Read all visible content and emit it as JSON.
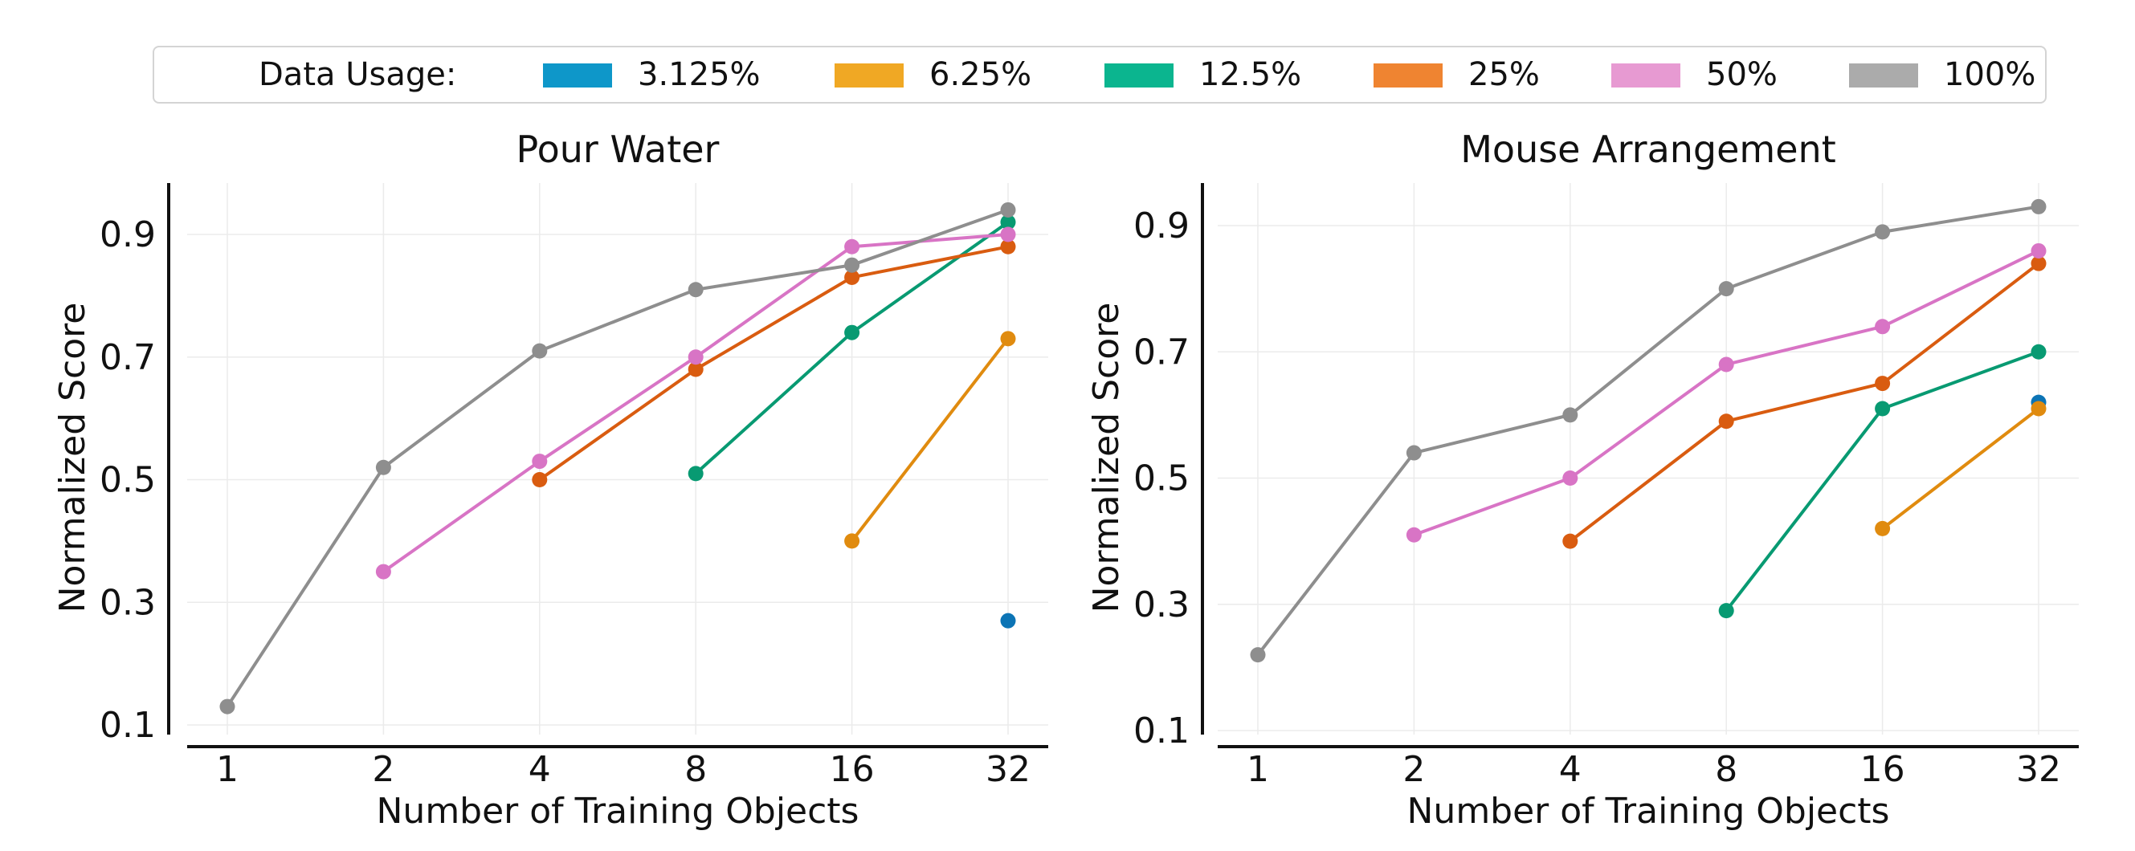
{
  "legend": {
    "title": "Data Usage:",
    "items": [
      {
        "label": "3.125%",
        "color": "#0e97c9"
      },
      {
        "label": "6.25%",
        "color": "#f0a824"
      },
      {
        "label": "12.5%",
        "color": "#0bb58f"
      },
      {
        "label": "25%",
        "color": "#ef8431"
      },
      {
        "label": "50%",
        "color": "#e79ad2"
      },
      {
        "label": "100%",
        "color": "#ababab"
      }
    ]
  },
  "line_colors": [
    "#0c74b5",
    "#e08b0f",
    "#089a72",
    "#d95c10",
    "#d874c5",
    "#8e8e8e"
  ],
  "chart_data": [
    {
      "type": "line",
      "title": "Pour Water",
      "xlabel": "Number of Training Objects",
      "ylabel": "Normalized Score",
      "x": [
        "1",
        "2",
        "4",
        "8",
        "16",
        "32"
      ],
      "yticks": [
        "0.1",
        "0.3",
        "0.5",
        "0.7",
        "0.9"
      ],
      "ylim": [
        0.1,
        0.97
      ],
      "grid": true,
      "series": [
        {
          "name": "3.125%",
          "values": [
            null,
            null,
            null,
            null,
            null,
            0.27
          ]
        },
        {
          "name": "6.25%",
          "values": [
            null,
            null,
            null,
            null,
            0.4,
            0.73
          ]
        },
        {
          "name": "12.5%",
          "values": [
            null,
            null,
            null,
            0.51,
            0.74,
            0.92
          ]
        },
        {
          "name": "25%",
          "values": [
            null,
            null,
            0.5,
            0.68,
            0.83,
            0.88
          ]
        },
        {
          "name": "50%",
          "values": [
            null,
            0.35,
            0.53,
            0.7,
            0.88,
            0.9
          ]
        },
        {
          "name": "100%",
          "values": [
            0.13,
            0.52,
            0.71,
            0.81,
            0.85,
            0.94
          ]
        }
      ]
    },
    {
      "type": "line",
      "title": "Mouse Arrangement",
      "xlabel": "Number of Training Objects",
      "ylabel": "Normalized Score",
      "x": [
        "1",
        "2",
        "4",
        "8",
        "16",
        "32"
      ],
      "yticks": [
        "0.1",
        "0.3",
        "0.5",
        "0.7",
        "0.9"
      ],
      "ylim": [
        0.1,
        0.96
      ],
      "grid": true,
      "series": [
        {
          "name": "3.125%",
          "values": [
            null,
            null,
            null,
            null,
            null,
            0.62
          ]
        },
        {
          "name": "6.25%",
          "values": [
            null,
            null,
            null,
            null,
            0.42,
            0.61
          ]
        },
        {
          "name": "12.5%",
          "values": [
            null,
            null,
            null,
            0.29,
            0.61,
            0.7
          ]
        },
        {
          "name": "25%",
          "values": [
            null,
            null,
            0.4,
            0.59,
            0.65,
            0.84
          ]
        },
        {
          "name": "50%",
          "values": [
            null,
            0.41,
            0.5,
            0.68,
            0.74,
            0.86
          ]
        },
        {
          "name": "100%",
          "values": [
            0.22,
            0.54,
            0.6,
            0.8,
            0.89,
            0.93
          ]
        }
      ]
    }
  ]
}
